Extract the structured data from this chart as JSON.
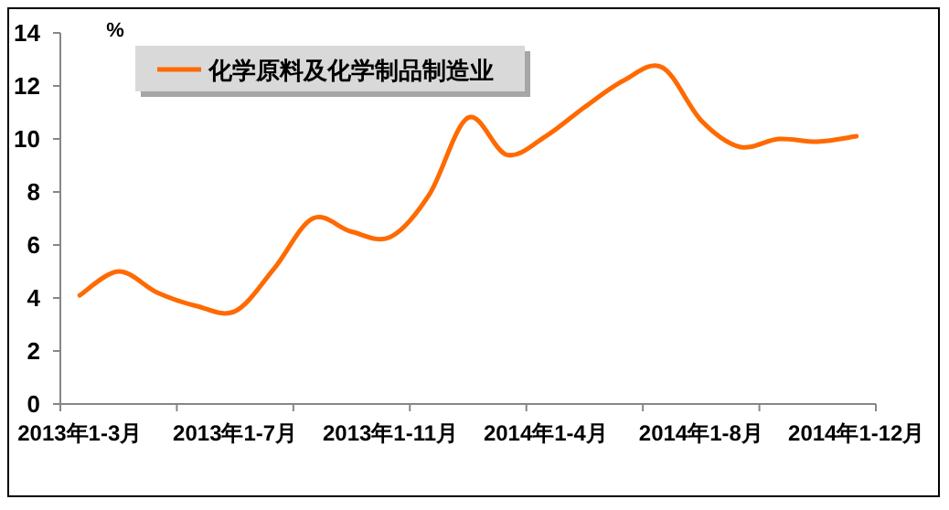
{
  "chart_data": {
    "type": "line",
    "ylabel": "%",
    "categories": [
      "2013年1-3月",
      null,
      null,
      null,
      "2013年1-7月",
      null,
      null,
      null,
      "2013年1-11月",
      null,
      null,
      null,
      "2014年1-4月",
      null,
      null,
      null,
      "2014年1-8月",
      null,
      null,
      null,
      "2014年1-12月"
    ],
    "series": [
      {
        "name": "化学原料及化学制品制造业",
        "color": "#ff6a00",
        "values": [
          4.1,
          5.0,
          4.2,
          3.7,
          3.5,
          5.1,
          7.0,
          6.5,
          6.3,
          7.9,
          10.8,
          9.4,
          10.1,
          11.2,
          12.2,
          12.7,
          10.7,
          9.7,
          10.0,
          9.9,
          10.1
        ]
      }
    ],
    "ylim": [
      0,
      14
    ],
    "yticks": [
      0,
      2,
      4,
      6,
      8,
      10,
      12,
      14
    ],
    "legend": "top left",
    "grid": false,
    "marker": "none",
    "line_style": "solid"
  }
}
